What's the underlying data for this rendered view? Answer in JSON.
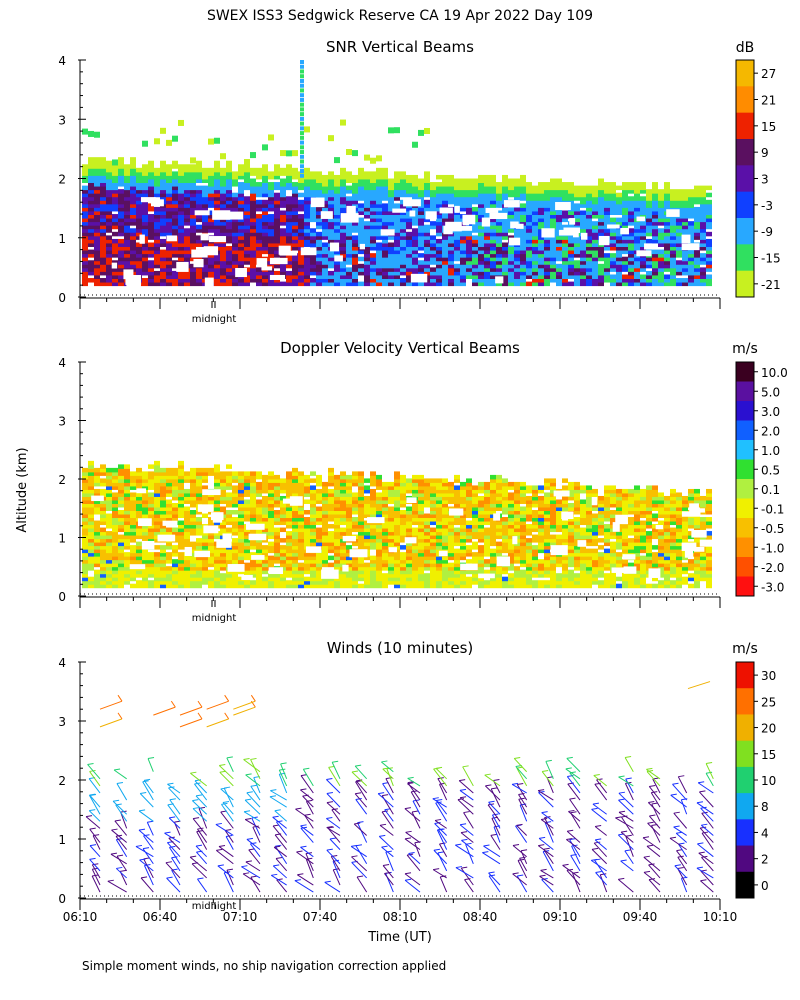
{
  "page": {
    "title": "SWEX ISS3 Sedgwick Reserve CA  19 Apr 2022 Day 109",
    "footnote": "Simple moment winds, no ship navigation correction applied",
    "ylabel": "Altitude (km)",
    "xlabel": "Time (UT)",
    "midnight_label": "midnight"
  },
  "chart_data": [
    {
      "type": "heatmap",
      "title": "SNR Vertical Beams",
      "units": "dB",
      "ylabel": "Altitude (km)",
      "ylim": [
        0,
        4
      ],
      "yticks": [
        "0",
        "1",
        "2",
        "3",
        "4"
      ],
      "xlim": [
        "06:10",
        "10:10"
      ],
      "colorbar": {
        "labels": [
          "27",
          "21",
          "15",
          "9",
          "3",
          "-3",
          "-9",
          "-15",
          "-21"
        ],
        "colors": [
          "#f5b800",
          "#ff8c00",
          "#ee2200",
          "#5a1060",
          "#5a10a8",
          "#1040ff",
          "#28a8ff",
          "#30e060",
          "#c8f020"
        ]
      },
      "description": "Strong returns 0.2-2.0 km, weaker noisy returns up to ~3 km; plume near 07:40 to 4 km"
    },
    {
      "type": "heatmap",
      "title": "Doppler Velocity Vertical Beams",
      "units": "m/s",
      "ylabel": "Altitude (km)",
      "ylim": [
        0,
        4
      ],
      "yticks": [
        "0",
        "1",
        "2",
        "3",
        "4"
      ],
      "xlim": [
        "06:10",
        "10:10"
      ],
      "colorbar": {
        "labels": [
          "10.0",
          "5.0",
          "3.0",
          "2.0",
          "1.0",
          "0.5",
          "0.1",
          "-0.1",
          "-0.5",
          "-1.0",
          "-2.0",
          "-3.0"
        ],
        "colors": [
          "#3a0020",
          "#5a10a0",
          "#2a10d0",
          "#1060ff",
          "#20c0ff",
          "#30e030",
          "#b0f040",
          "#f0f000",
          "#f8c000",
          "#ff9000",
          "#ff5000",
          "#ff1010"
        ]
      },
      "description": "Mostly weak downward velocities (yellow/orange) 0.2-2.3 km"
    },
    {
      "type": "scatter",
      "title": "Winds (10 minutes)",
      "units": "m/s",
      "ylabel": "Altitude (km)",
      "xlabel": "Time (UT)",
      "ylim": [
        0,
        4
      ],
      "yticks": [
        "0",
        "1",
        "2",
        "3",
        "4"
      ],
      "x": [
        "06:10",
        "06:40",
        "07:10",
        "07:40",
        "08:10",
        "08:40",
        "09:10",
        "09:40",
        "10:10"
      ],
      "colorbar": {
        "labels": [
          "30",
          "25",
          "20",
          "15",
          "10",
          "8",
          "4",
          "2",
          "0"
        ],
        "colors": [
          "#ee1100",
          "#ff7000",
          "#f0b000",
          "#80e020",
          "#20d070",
          "#10a8f0",
          "#1830ff",
          "#500880",
          "#000000"
        ]
      },
      "description": "Wind barbs every 10 minutes; stronger winds (orange) near 3 km, weaker (blue/purple) below 2 km"
    }
  ]
}
